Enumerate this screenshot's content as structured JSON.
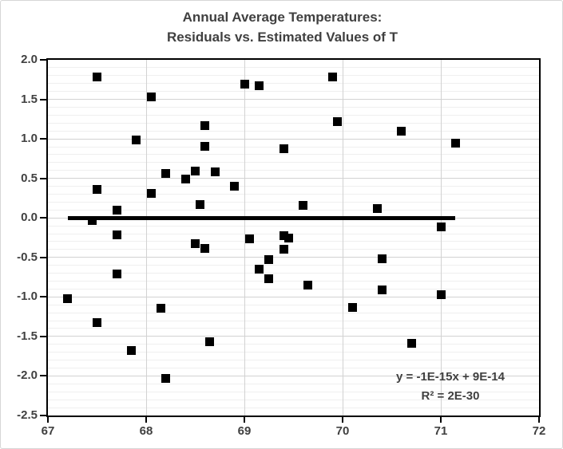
{
  "chart_data": {
    "type": "scatter",
    "title_lines": [
      "Annual Average Temperatures:",
      "Residuals vs. Estimated Values of T"
    ],
    "xlabel": "",
    "ylabel": "",
    "xlim": [
      67,
      72
    ],
    "ylim": [
      -2.5,
      2.0
    ],
    "x_ticks": [
      "67",
      "68",
      "69",
      "70",
      "71",
      "72"
    ],
    "y_ticks": [
      "2.0",
      "1.5",
      "1.0",
      "0.5",
      "0.0",
      "-0.5",
      "-1.0",
      "-1.5",
      "-2.0",
      "-2.5"
    ],
    "y_major_step": 0.5,
    "y_minor_step": 0.1,
    "grid": "on",
    "legend": "none",
    "marker": "black-square",
    "points": [
      [
        67.5,
        1.78
      ],
      [
        69.9,
        1.78
      ],
      [
        69.0,
        1.69
      ],
      [
        69.15,
        1.67
      ],
      [
        68.05,
        1.53
      ],
      [
        69.95,
        1.22
      ],
      [
        68.6,
        1.17
      ],
      [
        70.6,
        1.1
      ],
      [
        67.9,
        0.99
      ],
      [
        71.15,
        0.95
      ],
      [
        68.6,
        0.91
      ],
      [
        69.4,
        0.88
      ],
      [
        68.5,
        0.59
      ],
      [
        68.7,
        0.58
      ],
      [
        68.2,
        0.56
      ],
      [
        68.4,
        0.49
      ],
      [
        68.9,
        0.4
      ],
      [
        67.5,
        0.36
      ],
      [
        68.05,
        0.31
      ],
      [
        68.55,
        0.17
      ],
      [
        69.6,
        0.16
      ],
      [
        70.35,
        0.12
      ],
      [
        67.7,
        0.1
      ],
      [
        67.45,
        -0.03
      ],
      [
        71.0,
        -0.11
      ],
      [
        67.7,
        -0.21
      ],
      [
        69.4,
        -0.22
      ],
      [
        69.45,
        -0.26
      ],
      [
        69.05,
        -0.27
      ],
      [
        68.5,
        -0.33
      ],
      [
        68.6,
        -0.39
      ],
      [
        69.4,
        -0.4
      ],
      [
        70.4,
        -0.52
      ],
      [
        69.25,
        -0.53
      ],
      [
        69.15,
        -0.65
      ],
      [
        67.7,
        -0.71
      ],
      [
        69.25,
        -0.77
      ],
      [
        69.65,
        -0.85
      ],
      [
        70.4,
        -0.91
      ],
      [
        71.0,
        -0.97
      ],
      [
        67.2,
        -1.02
      ],
      [
        70.1,
        -1.13
      ],
      [
        68.15,
        -1.14
      ],
      [
        67.5,
        -1.32
      ],
      [
        68.65,
        -1.57
      ],
      [
        70.7,
        -1.59
      ],
      [
        67.85,
        -1.68
      ],
      [
        68.2,
        -2.03
      ]
    ],
    "trendline": {
      "x1": 67.2,
      "x2": 71.15,
      "y": 0.0
    },
    "annotation_lines": [
      "y = -1E-15x + 9E-14",
      "R² = 2E-30"
    ],
    "colors": {
      "marker": "#000000",
      "trendline": "#000000",
      "text": "#404040",
      "axis": "#000000",
      "gridline_major": "#d2d2d2",
      "gridline_minor": "#efefef"
    }
  }
}
